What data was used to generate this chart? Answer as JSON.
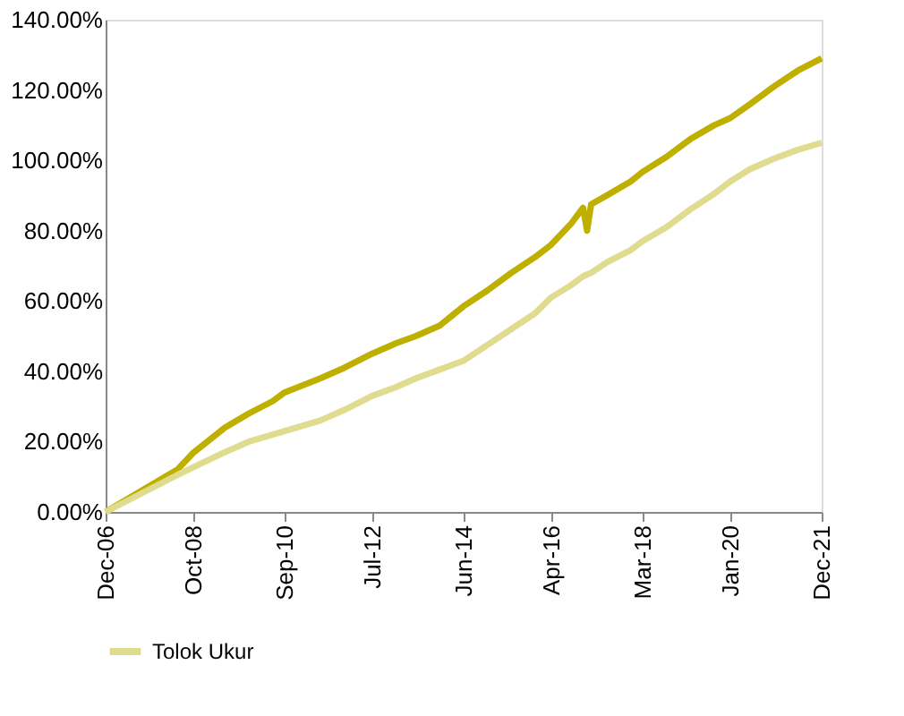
{
  "chart_data": {
    "type": "line",
    "x": [
      "2006-12",
      "2007-06",
      "2007-12",
      "2008-06",
      "2008-10",
      "2009-06",
      "2009-12",
      "2010-06",
      "2010-09",
      "2011-06",
      "2011-12",
      "2012-07",
      "2013-01",
      "2013-06",
      "2013-12",
      "2014-06",
      "2014-12",
      "2015-06",
      "2015-12",
      "2016-04",
      "2016-09",
      "2016-12",
      "2017-01",
      "2017-02",
      "2017-06",
      "2017-12",
      "2018-03",
      "2018-09",
      "2019-03",
      "2019-09",
      "2020-01",
      "2020-06",
      "2020-12",
      "2021-06",
      "2021-12"
    ],
    "series": [
      {
        "color": "#bfb000",
        "values": [
          0,
          4,
          8,
          12,
          16.8,
          24,
          28,
          31.5,
          34,
          38,
          41,
          45,
          48,
          50,
          53,
          58.5,
          63,
          68,
          72.5,
          76,
          82,
          86.5,
          80,
          87.5,
          90,
          94,
          96.7,
          101,
          106,
          110,
          112,
          116,
          121,
          125.5,
          129
        ]
      },
      {
        "name": "Tolok Ukur",
        "color": "#e0dc8f",
        "values": [
          0,
          3.5,
          7,
          10.5,
          12.7,
          17,
          20,
          22,
          23,
          26,
          29,
          33,
          35.5,
          38,
          40.5,
          43,
          47.5,
          52,
          56.5,
          61,
          64.5,
          67,
          67.5,
          68,
          71,
          74.5,
          77,
          81,
          86,
          90.5,
          94,
          97.5,
          100.5,
          103,
          105
        ]
      }
    ],
    "xlim": [
      "2006-12",
      "2021-12"
    ],
    "xticks": [
      {
        "value": "2006-12",
        "label": "Dec-06"
      },
      {
        "value": "2008-10",
        "label": "Oct-08"
      },
      {
        "value": "2010-09",
        "label": "Sep-10"
      },
      {
        "value": "2012-07",
        "label": "Jul-12"
      },
      {
        "value": "2014-06",
        "label": "Jun-14"
      },
      {
        "value": "2016-04",
        "label": "Apr-16"
      },
      {
        "value": "2018-03",
        "label": "Mar-18"
      },
      {
        "value": "2020-01",
        "label": "Jan-20"
      },
      {
        "value": "2021-12",
        "label": "Dec-21"
      }
    ],
    "ylim": [
      0,
      140
    ],
    "yticks": [
      {
        "value": 0,
        "label": "0.00%"
      },
      {
        "value": 20,
        "label": "20.00%"
      },
      {
        "value": 40,
        "label": "40.00%"
      },
      {
        "value": 60,
        "label": "60.00%"
      },
      {
        "value": 80,
        "label": "80.00%"
      },
      {
        "value": 100,
        "label": "100.00%"
      },
      {
        "value": 120,
        "label": "120.00%"
      },
      {
        "value": 140,
        "label": "140.00%"
      }
    ],
    "grid": false,
    "legend": "bottom",
    "line_style": "solid",
    "marker": "none"
  }
}
